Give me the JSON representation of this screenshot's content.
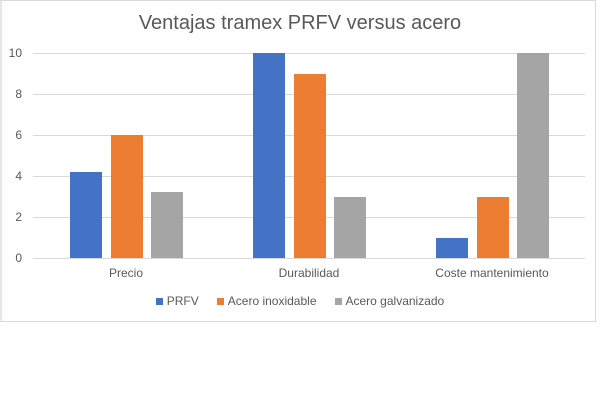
{
  "chart_data": {
    "type": "bar",
    "title": "Ventajas tramex PRFV versus acero",
    "categories": [
      "Precio",
      "Durabilidad",
      "Coste mantenimiento"
    ],
    "series": [
      {
        "name": "PRFV",
        "color": "#4472c4",
        "values": [
          4.2,
          10,
          1
        ]
      },
      {
        "name": "Acero inoxidable",
        "color": "#ed7d31",
        "values": [
          6,
          9,
          3
        ]
      },
      {
        "name": "Acero galvanizado",
        "color": "#a5a5a5",
        "values": [
          3.2,
          3,
          10
        ]
      }
    ],
    "xlabel": "",
    "ylabel": "",
    "ylim": [
      0,
      10
    ],
    "yticks": [
      "0",
      "2",
      "4",
      "6",
      "8",
      "10"
    ],
    "grid": true,
    "legend_position": "bottom"
  }
}
